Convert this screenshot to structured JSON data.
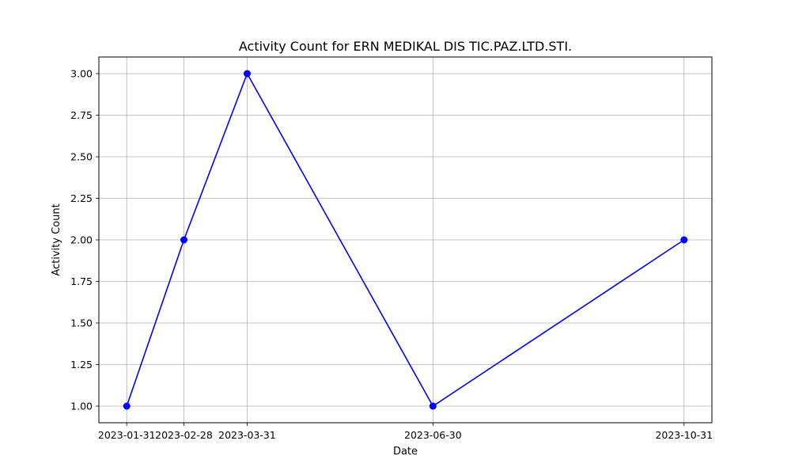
{
  "chart_data": {
    "type": "line",
    "title": "Activity Count for ERN MEDIKAL DIS TIC.PAZ.LTD.STI.",
    "xlabel": "Date",
    "ylabel": "Activity Count",
    "categories": [
      "2023-01-31",
      "2023-02-28",
      "2023-03-31",
      "2023-06-30",
      "2023-10-31"
    ],
    "series": [
      {
        "values": [
          1,
          2,
          3,
          1,
          2
        ],
        "color": "#0000ff",
        "marker": "circle"
      }
    ],
    "ylim": [
      0.9,
      3.1
    ],
    "yticks": [
      "1.00",
      "1.25",
      "1.50",
      "1.75",
      "2.00",
      "2.25",
      "2.50",
      "2.75",
      "3.00"
    ],
    "grid": true
  }
}
